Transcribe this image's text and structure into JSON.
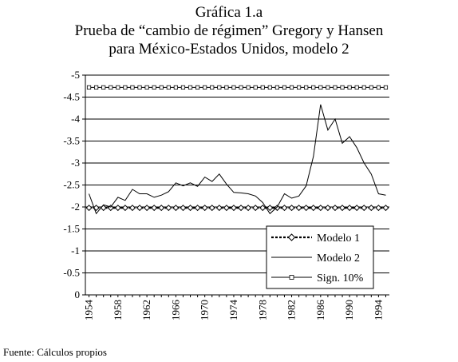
{
  "title": {
    "line1": "Gráfica 1.a",
    "line2": "Prueba de “cambio de régimen” Gregory y Hansen",
    "line3": "para México-Estados Unidos, modelo 2"
  },
  "source": "Fuente: Cálculos propios",
  "chart_data": {
    "type": "line",
    "title": "",
    "xlabel": "",
    "ylabel": "",
    "ylim": [
      0,
      -5
    ],
    "y_axis_inverted": true,
    "yticks": [
      {
        "value": -5,
        "label": "-5"
      },
      {
        "value": -4.5,
        "label": "-4.5"
      },
      {
        "value": -4,
        "label": "-4"
      },
      {
        "value": -3.5,
        "label": "-3.5"
      },
      {
        "value": -3,
        "label": "-3"
      },
      {
        "value": -2.5,
        "label": "-2.5"
      },
      {
        "value": -2,
        "label": "-2"
      },
      {
        "value": -1.5,
        "label": "-1.5"
      },
      {
        "value": -1,
        "label": "-1"
      },
      {
        "value": -0.5,
        "label": "-0.5"
      },
      {
        "value": 0,
        "label": "0"
      }
    ],
    "xticks": [
      "1954",
      "1958",
      "1962",
      "1966",
      "1970",
      "1974",
      "1978",
      "1982",
      "1986",
      "1990",
      "1994"
    ],
    "x": [
      1954,
      1955,
      1956,
      1957,
      1958,
      1959,
      1960,
      1961,
      1962,
      1963,
      1964,
      1965,
      1966,
      1967,
      1968,
      1969,
      1970,
      1971,
      1972,
      1973,
      1974,
      1975,
      1976,
      1977,
      1978,
      1979,
      1980,
      1981,
      1982,
      1983,
      1984,
      1985,
      1986,
      1987,
      1988,
      1989,
      1990,
      1991,
      1992,
      1993,
      1994,
      1995
    ],
    "grid": "horizontal",
    "legend": "bottom-right",
    "series": [
      {
        "name": "Modelo 1",
        "style": "dotted-diamond",
        "values": [
          -1.98,
          -1.98,
          -1.98,
          -1.98,
          -1.98,
          -1.98,
          -1.98,
          -1.98,
          -1.98,
          -1.98,
          -1.98,
          -1.98,
          -1.98,
          -1.98,
          -1.98,
          -1.98,
          -1.98,
          -1.98,
          -1.98,
          -1.98,
          -1.98,
          -1.98,
          -1.98,
          -1.98,
          -1.98,
          -1.98,
          -1.98,
          -1.98,
          -1.98,
          -1.98,
          -1.98,
          -1.98,
          -1.98,
          -1.98,
          -1.98,
          -1.98,
          -1.98,
          -1.98,
          -1.98,
          -1.98,
          -1.98,
          -1.98
        ]
      },
      {
        "name": "Modelo 2",
        "style": "solid",
        "values": [
          -2.3,
          -1.85,
          -2.05,
          -2.0,
          -2.22,
          -2.15,
          -2.4,
          -2.3,
          -2.3,
          -2.22,
          -2.27,
          -2.35,
          -2.55,
          -2.48,
          -2.55,
          -2.47,
          -2.68,
          -2.58,
          -2.75,
          -2.52,
          -2.33,
          -2.32,
          -2.3,
          -2.25,
          -2.1,
          -1.85,
          -2.0,
          -2.3,
          -2.2,
          -2.25,
          -2.48,
          -3.15,
          -4.33,
          -3.75,
          -4.0,
          -3.45,
          -3.6,
          -3.35,
          -3.0,
          -2.75,
          -2.3,
          -2.27
        ]
      },
      {
        "name": "Sign. 10%",
        "style": "solid-square",
        "values": [
          -4.72,
          -4.72,
          -4.72,
          -4.72,
          -4.72,
          -4.72,
          -4.72,
          -4.72,
          -4.72,
          -4.72,
          -4.72,
          -4.72,
          -4.72,
          -4.72,
          -4.72,
          -4.72,
          -4.72,
          -4.72,
          -4.72,
          -4.72,
          -4.72,
          -4.72,
          -4.72,
          -4.72,
          -4.72,
          -4.72,
          -4.72,
          -4.72,
          -4.72,
          -4.72,
          -4.72,
          -4.72,
          -4.72,
          -4.72,
          -4.72,
          -4.72,
          -4.72,
          -4.72,
          -4.72,
          -4.72,
          -4.72,
          -4.72
        ]
      }
    ]
  }
}
